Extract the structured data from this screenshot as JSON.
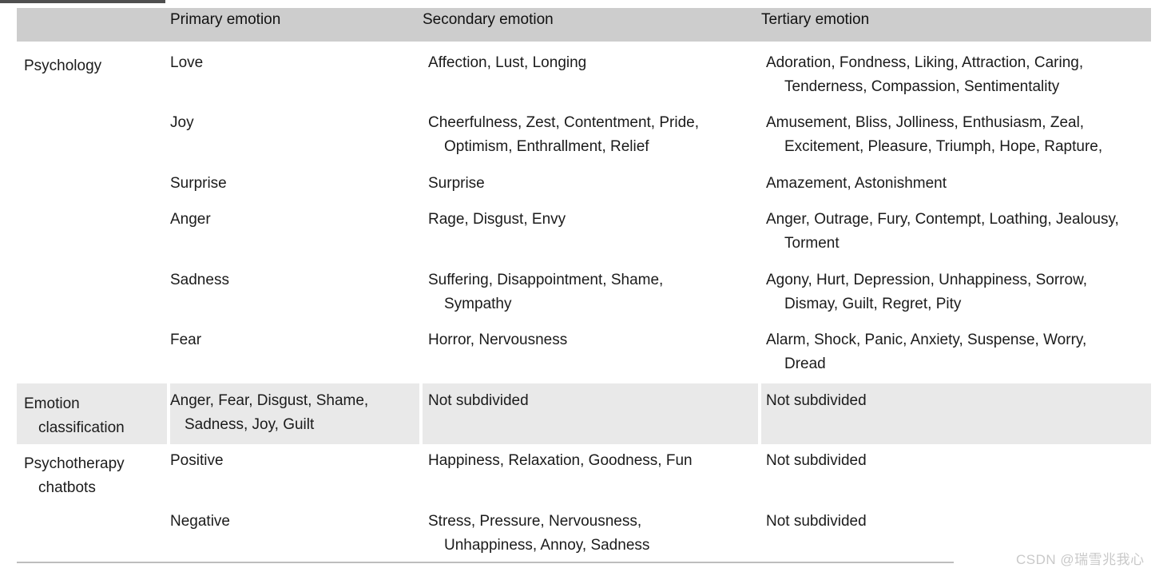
{
  "table": {
    "headers": [
      "",
      "Primary emotion",
      "Secondary emotion",
      "Tertiary emotion"
    ],
    "rows": [
      {
        "shaded": false,
        "group": [
          "Psychology"
        ],
        "primary": [
          "Love"
        ],
        "secondary": [
          "Affection, Lust, Longing"
        ],
        "tertiary": [
          "Adoration, Fondness, Liking, Attraction, Caring,",
          "Tenderness, Compassion, Sentimentality"
        ]
      },
      {
        "shaded": false,
        "group": [],
        "primary": [
          "Joy"
        ],
        "secondary": [
          "Cheerfulness, Zest, Contentment, Pride,",
          "Optimism, Enthrallment, Relief"
        ],
        "tertiary": [
          "Amusement, Bliss, Jolliness, Enthusiasm, Zeal,",
          "Excitement, Pleasure, Triumph, Hope, Rapture,"
        ]
      },
      {
        "shaded": false,
        "group": [],
        "primary": [
          "Surprise"
        ],
        "secondary": [
          "Surprise"
        ],
        "tertiary": [
          "Amazement, Astonishment"
        ]
      },
      {
        "shaded": false,
        "group": [],
        "primary": [
          "Anger"
        ],
        "secondary": [
          "Rage, Disgust, Envy"
        ],
        "tertiary": [
          "Anger, Outrage, Fury, Contempt, Loathing, Jealousy,",
          "Torment"
        ]
      },
      {
        "shaded": false,
        "group": [],
        "primary": [
          "Sadness"
        ],
        "secondary": [
          "Suffering, Disappointment, Shame,",
          "Sympathy"
        ],
        "tertiary": [
          "Agony, Hurt, Depression, Unhappiness, Sorrow,",
          "Dismay, Guilt, Regret, Pity"
        ]
      },
      {
        "shaded": false,
        "group": [],
        "primary": [
          "Fear"
        ],
        "secondary": [
          "Horror, Nervousness"
        ],
        "tertiary": [
          "Alarm, Shock, Panic, Anxiety, Suspense, Worry,",
          "Dread"
        ]
      },
      {
        "shaded": true,
        "group": [
          "Emotion",
          "classification"
        ],
        "primary": [
          "Anger, Fear, Disgust, Shame,",
          "Sadness, Joy, Guilt"
        ],
        "secondary": [
          "Not subdivided"
        ],
        "tertiary": [
          "Not subdivided"
        ]
      },
      {
        "shaded": false,
        "group": [
          "Psychotherapy",
          "chatbots"
        ],
        "primary": [
          "Positive"
        ],
        "secondary": [
          "Happiness, Relaxation, Goodness, Fun"
        ],
        "tertiary": [
          "Not subdivided"
        ]
      },
      {
        "shaded": false,
        "group": [],
        "primary": [
          "Negative"
        ],
        "secondary": [
          "Stress, Pressure, Nervousness,",
          "Unhappiness, Annoy, Sadness"
        ],
        "tertiary": [
          "Not subdivided"
        ]
      }
    ]
  },
  "watermark": {
    "text": "CSDN @瑞雪兆我心"
  }
}
